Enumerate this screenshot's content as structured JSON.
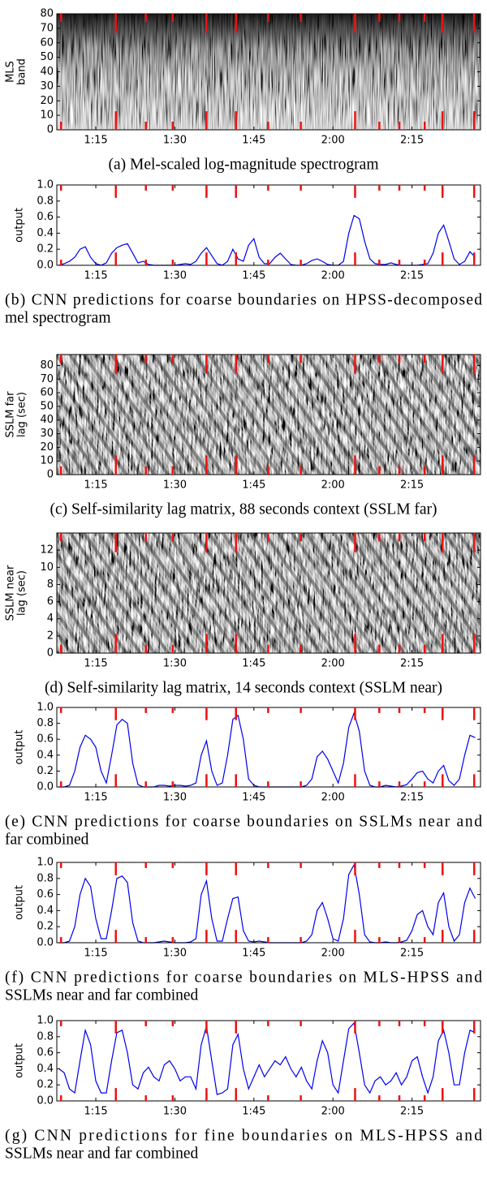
{
  "chart_data": [
    {
      "type": "heatmap",
      "ylabel": [
        "MLS",
        "band"
      ],
      "xlim": [
        67.6,
        148
      ],
      "xticks": [
        {
          "value": 75,
          "label": "1:15"
        },
        {
          "value": 90,
          "label": "1:30"
        },
        {
          "value": 105,
          "label": "1:45"
        },
        {
          "value": 120,
          "label": "2:00"
        },
        {
          "value": 135,
          "label": "2:15"
        }
      ],
      "ylim": [
        0,
        80
      ],
      "yticks": [
        0,
        10,
        20,
        30,
        40,
        50,
        60,
        70,
        80
      ],
      "caption": [
        "(a) Mel-scaled log-magnitude spectrogram"
      ],
      "boundary_color": "#ee1111",
      "boundaries": {
        "coarse": [
          78.8,
          96,
          101.6,
          124.2,
          140.8,
          146.8
        ],
        "fine": [
          68.4,
          84.5,
          89.6,
          107.7,
          113.9,
          128.8,
          132.6,
          137.4
        ]
      }
    },
    {
      "type": "line",
      "ylabel": [
        "output"
      ],
      "color": "#0000ee",
      "x": [
        68,
        69,
        70,
        71,
        72,
        73,
        74,
        75,
        76,
        77,
        78,
        79,
        80,
        81,
        82,
        83,
        84,
        85,
        86,
        87,
        88,
        89,
        90,
        91,
        92,
        93,
        94,
        95,
        96,
        97,
        98,
        99,
        100,
        101,
        102,
        103,
        104,
        105,
        106,
        107,
        108,
        109,
        110,
        111,
        112,
        113,
        114,
        115,
        116,
        117,
        118,
        119,
        120,
        121,
        122,
        123,
        124,
        125,
        126,
        127,
        128,
        129,
        130,
        131,
        132,
        133,
        134,
        135,
        136,
        137,
        138,
        139,
        140,
        141,
        142,
        143,
        144,
        145,
        146,
        147
      ],
      "values": [
        0,
        0.02,
        0.05,
        0.1,
        0.2,
        0.23,
        0.1,
        0.02,
        0,
        0.03,
        0.15,
        0.22,
        0.25,
        0.27,
        0.15,
        0.03,
        0.05,
        0.01,
        0,
        0,
        0,
        0,
        0,
        0.01,
        0.02,
        0.01,
        0.05,
        0.15,
        0.22,
        0.12,
        0.02,
        0,
        0.05,
        0.2,
        0.08,
        0.05,
        0.25,
        0.33,
        0.1,
        0.02,
        0.02,
        0.1,
        0.15,
        0.08,
        0.01,
        0,
        0,
        0.02,
        0.06,
        0.08,
        0.05,
        0.01,
        0,
        0,
        0.05,
        0.4,
        0.62,
        0.58,
        0.3,
        0.08,
        0.02,
        0.01,
        0.01,
        0.03,
        0.01,
        0,
        0,
        0,
        0,
        0.01,
        0.02,
        0.15,
        0.4,
        0.5,
        0.3,
        0.08,
        0.01,
        0.05,
        0.17,
        0.1
      ],
      "xlim": [
        67.6,
        148
      ],
      "xticks": [
        {
          "value": 75,
          "label": "1:15"
        },
        {
          "value": 90,
          "label": "1:30"
        },
        {
          "value": 105,
          "label": "1:45"
        },
        {
          "value": 120,
          "label": "2:00"
        },
        {
          "value": 135,
          "label": "2:15"
        }
      ],
      "ylim": [
        0,
        1
      ],
      "yticks": [
        {
          "value": 0,
          "label": "0.0"
        },
        {
          "value": 0.2,
          "label": "0.2"
        },
        {
          "value": 0.4,
          "label": "0.4"
        },
        {
          "value": 0.6,
          "label": "0.6"
        },
        {
          "value": 0.8,
          "label": "0.8"
        },
        {
          "value": 1,
          "label": "1.0"
        }
      ],
      "caption": [
        "(b) CNN predictions for coarse boundaries on HPSS-decomposed",
        "mel spectrogram"
      ],
      "boundary_color": "#ee1111",
      "boundaries": {
        "coarse": [
          78.8,
          96,
          101.6,
          124.2,
          140.8,
          146.8
        ],
        "fine": [
          68.4,
          84.5,
          89.6,
          107.7,
          113.9,
          128.8,
          132.6,
          137.4
        ]
      }
    },
    {
      "type": "heatmap",
      "ylabel": [
        "SSLM far",
        "lag (sec)"
      ],
      "xlim": [
        67.6,
        148
      ],
      "xticks": [
        {
          "value": 75,
          "label": "1:15"
        },
        {
          "value": 90,
          "label": "1:30"
        },
        {
          "value": 105,
          "label": "1:45"
        },
        {
          "value": 120,
          "label": "2:00"
        },
        {
          "value": 135,
          "label": "2:15"
        }
      ],
      "ylim": [
        0,
        88
      ],
      "yticks": [
        0,
        10,
        20,
        30,
        40,
        50,
        60,
        70,
        80
      ],
      "caption": [
        "(c) Self-similarity lag matrix, 88 seconds context (SSLM far)"
      ],
      "boundary_color": "#ee1111",
      "boundaries": {
        "coarse": [
          78.8,
          96,
          101.6,
          124.2,
          140.8,
          146.8
        ],
        "fine": [
          68.4,
          84.5,
          89.6,
          107.7,
          113.9,
          128.8,
          132.6,
          137.4
        ]
      }
    },
    {
      "type": "heatmap",
      "ylabel": [
        "SSLM near",
        "lag (sec)"
      ],
      "xlim": [
        67.6,
        148
      ],
      "xticks": [
        {
          "value": 75,
          "label": "1:15"
        },
        {
          "value": 90,
          "label": "1:30"
        },
        {
          "value": 105,
          "label": "1:45"
        },
        {
          "value": 120,
          "label": "2:00"
        },
        {
          "value": 135,
          "label": "2:15"
        }
      ],
      "ylim": [
        0,
        14
      ],
      "yticks": [
        0,
        2,
        4,
        6,
        8,
        10,
        12
      ],
      "caption": [
        "(d) Self-similarity lag matrix, 14 seconds context (SSLM near)"
      ],
      "boundary_color": "#ee1111",
      "boundaries": {
        "coarse": [
          78.8,
          96,
          101.6,
          124.2,
          140.8,
          146.8
        ],
        "fine": [
          68.4,
          84.5,
          89.6,
          107.7,
          113.9,
          128.8,
          132.6,
          137.4
        ]
      }
    },
    {
      "type": "line",
      "ylabel": [
        "output"
      ],
      "color": "#0000ee",
      "x": [
        68,
        69,
        70,
        71,
        72,
        73,
        74,
        75,
        76,
        77,
        78,
        79,
        80,
        81,
        82,
        83,
        84,
        85,
        86,
        87,
        88,
        89,
        90,
        91,
        92,
        93,
        94,
        95,
        96,
        97,
        98,
        99,
        100,
        101,
        102,
        103,
        104,
        105,
        106,
        107,
        108,
        109,
        110,
        111,
        112,
        113,
        114,
        115,
        116,
        117,
        118,
        119,
        120,
        121,
        122,
        123,
        124,
        125,
        126,
        127,
        128,
        129,
        130,
        131,
        132,
        133,
        134,
        135,
        136,
        137,
        138,
        139,
        140,
        141,
        142,
        143,
        144,
        145,
        146,
        147
      ],
      "values": [
        0,
        0,
        0.02,
        0.2,
        0.5,
        0.65,
        0.6,
        0.5,
        0.2,
        0.05,
        0.4,
        0.78,
        0.85,
        0.8,
        0.3,
        0.03,
        0,
        0,
        0,
        0.02,
        0.02,
        0.01,
        0.02,
        0.02,
        0.01,
        0.02,
        0.05,
        0.4,
        0.58,
        0.2,
        0.02,
        0.05,
        0.4,
        0.85,
        0.9,
        0.6,
        0.1,
        0.02,
        0,
        0,
        0,
        0,
        0,
        0,
        0,
        0,
        0,
        0.02,
        0.1,
        0.38,
        0.45,
        0.35,
        0.2,
        0.05,
        0.3,
        0.75,
        0.93,
        0.7,
        0.2,
        0.02,
        0,
        0,
        0.02,
        0.01,
        0,
        0.01,
        0.03,
        0.1,
        0.18,
        0.2,
        0.1,
        0.05,
        0.2,
        0.27,
        0.08,
        0.02,
        0.1,
        0.4,
        0.65,
        0.62
      ],
      "xlim": [
        67.6,
        148
      ],
      "xticks": [
        {
          "value": 75,
          "label": "1:15"
        },
        {
          "value": 90,
          "label": "1:30"
        },
        {
          "value": 105,
          "label": "1:45"
        },
        {
          "value": 120,
          "label": "2:00"
        },
        {
          "value": 135,
          "label": "2:15"
        }
      ],
      "ylim": [
        0,
        1
      ],
      "yticks": [
        {
          "value": 0,
          "label": "0.0"
        },
        {
          "value": 0.2,
          "label": "0.2"
        },
        {
          "value": 0.4,
          "label": "0.4"
        },
        {
          "value": 0.6,
          "label": "0.6"
        },
        {
          "value": 0.8,
          "label": "0.8"
        },
        {
          "value": 1,
          "label": "1.0"
        }
      ],
      "caption": [
        "(e) CNN predictions for coarse boundaries on SSLMs near and",
        "far combined"
      ],
      "boundary_color": "#ee1111",
      "boundaries": {
        "coarse": [
          78.8,
          96,
          101.6,
          124.2,
          140.8,
          146.8
        ],
        "fine": [
          68.4,
          84.5,
          89.6,
          107.7,
          113.9,
          128.8,
          132.6,
          137.4
        ]
      }
    },
    {
      "type": "line",
      "ylabel": [
        "output"
      ],
      "color": "#0000ee",
      "x": [
        68,
        69,
        70,
        71,
        72,
        73,
        74,
        75,
        76,
        77,
        78,
        79,
        80,
        81,
        82,
        83,
        84,
        85,
        86,
        87,
        88,
        89,
        90,
        91,
        92,
        93,
        94,
        95,
        96,
        97,
        98,
        99,
        100,
        101,
        102,
        103,
        104,
        105,
        106,
        107,
        108,
        109,
        110,
        111,
        112,
        113,
        114,
        115,
        116,
        117,
        118,
        119,
        120,
        121,
        122,
        123,
        124,
        125,
        126,
        127,
        128,
        129,
        130,
        131,
        132,
        133,
        134,
        135,
        136,
        137,
        138,
        139,
        140,
        141,
        142,
        143,
        144,
        145,
        146,
        147
      ],
      "values": [
        0,
        0,
        0.02,
        0.2,
        0.6,
        0.8,
        0.7,
        0.3,
        0.05,
        0.05,
        0.4,
        0.8,
        0.83,
        0.75,
        0.25,
        0.02,
        0,
        0,
        0,
        0.01,
        0.02,
        0.01,
        0,
        0,
        0,
        0.01,
        0.05,
        0.6,
        0.77,
        0.3,
        0.02,
        0.02,
        0.3,
        0.55,
        0.57,
        0.15,
        0.02,
        0.01,
        0.02,
        0.01,
        0,
        0,
        0,
        0,
        0,
        0,
        0,
        0.02,
        0.1,
        0.4,
        0.5,
        0.3,
        0.05,
        0.02,
        0.3,
        0.85,
        0.97,
        0.6,
        0.1,
        0.01,
        0,
        0,
        0.01,
        0,
        0,
        0.01,
        0.03,
        0.15,
        0.35,
        0.4,
        0.2,
        0.1,
        0.5,
        0.62,
        0.2,
        0.02,
        0.1,
        0.5,
        0.68,
        0.55
      ],
      "xlim": [
        67.6,
        148
      ],
      "xticks": [
        {
          "value": 75,
          "label": "1:15"
        },
        {
          "value": 90,
          "label": "1:30"
        },
        {
          "value": 105,
          "label": "1:45"
        },
        {
          "value": 120,
          "label": "2:00"
        },
        {
          "value": 135,
          "label": "2:15"
        }
      ],
      "ylim": [
        0,
        1
      ],
      "yticks": [
        {
          "value": 0,
          "label": "0.0"
        },
        {
          "value": 0.2,
          "label": "0.2"
        },
        {
          "value": 0.4,
          "label": "0.4"
        },
        {
          "value": 0.6,
          "label": "0.6"
        },
        {
          "value": 0.8,
          "label": "0.8"
        },
        {
          "value": 1,
          "label": "1.0"
        }
      ],
      "caption": [
        "(f) CNN predictions for coarse boundaries on MLS-HPSS and",
        "SSLMs near and far combined"
      ],
      "boundary_color": "#ee1111",
      "boundaries": {
        "coarse": [
          78.8,
          96,
          101.6,
          124.2,
          140.8,
          146.8
        ],
        "fine": [
          68.4,
          84.5,
          89.6,
          107.7,
          113.9,
          128.8,
          132.6,
          137.4
        ]
      }
    },
    {
      "type": "line",
      "ylabel": [
        "output"
      ],
      "color": "#0000ee",
      "x": [
        68,
        69,
        70,
        71,
        72,
        73,
        74,
        75,
        76,
        77,
        78,
        79,
        80,
        81,
        82,
        83,
        84,
        85,
        86,
        87,
        88,
        89,
        90,
        91,
        92,
        93,
        94,
        95,
        96,
        97,
        98,
        99,
        100,
        101,
        102,
        103,
        104,
        105,
        106,
        107,
        108,
        109,
        110,
        111,
        112,
        113,
        114,
        115,
        116,
        117,
        118,
        119,
        120,
        121,
        122,
        123,
        124,
        125,
        126,
        127,
        128,
        129,
        130,
        131,
        132,
        133,
        134,
        135,
        136,
        137,
        138,
        139,
        140,
        141,
        142,
        143,
        144,
        145,
        146,
        147
      ],
      "values": [
        0.4,
        0.35,
        0.15,
        0.1,
        0.5,
        0.88,
        0.7,
        0.25,
        0.1,
        0.1,
        0.5,
        0.85,
        0.88,
        0.6,
        0.2,
        0.15,
        0.35,
        0.42,
        0.3,
        0.25,
        0.45,
        0.5,
        0.4,
        0.25,
        0.3,
        0.3,
        0.15,
        0.7,
        0.93,
        0.5,
        0.08,
        0.1,
        0.15,
        0.7,
        0.83,
        0.4,
        0.15,
        0.3,
        0.45,
        0.3,
        0.4,
        0.5,
        0.45,
        0.55,
        0.4,
        0.3,
        0.42,
        0.25,
        0.15,
        0.5,
        0.75,
        0.6,
        0.2,
        0.1,
        0.5,
        0.9,
        0.97,
        0.6,
        0.2,
        0.1,
        0.25,
        0.3,
        0.2,
        0.25,
        0.35,
        0.2,
        0.3,
        0.5,
        0.55,
        0.3,
        0.1,
        0.3,
        0.75,
        0.88,
        0.6,
        0.2,
        0.2,
        0.6,
        0.88,
        0.85
      ],
      "xlim": [
        67.6,
        148
      ],
      "xticks": [
        {
          "value": 75,
          "label": "1:15"
        },
        {
          "value": 90,
          "label": "1:30"
        },
        {
          "value": 105,
          "label": "1:45"
        },
        {
          "value": 120,
          "label": "2:00"
        },
        {
          "value": 135,
          "label": "2:15"
        }
      ],
      "ylim": [
        0,
        1
      ],
      "yticks": [
        {
          "value": 0,
          "label": "0.0"
        },
        {
          "value": 0.2,
          "label": "0.2"
        },
        {
          "value": 0.4,
          "label": "0.4"
        },
        {
          "value": 0.6,
          "label": "0.6"
        },
        {
          "value": 0.8,
          "label": "0.8"
        },
        {
          "value": 1,
          "label": "1.0"
        }
      ],
      "caption": [
        "(g) CNN predictions for fine boundaries on MLS-HPSS and",
        "SSLMs near and far combined"
      ],
      "boundary_color": "#ee1111",
      "boundaries": {
        "coarse": [
          78.8,
          96,
          101.6,
          124.2,
          140.8,
          146.8
        ],
        "fine": [
          68.4,
          84.5,
          89.6,
          107.7,
          113.9,
          128.8,
          132.6,
          137.4
        ]
      }
    }
  ]
}
